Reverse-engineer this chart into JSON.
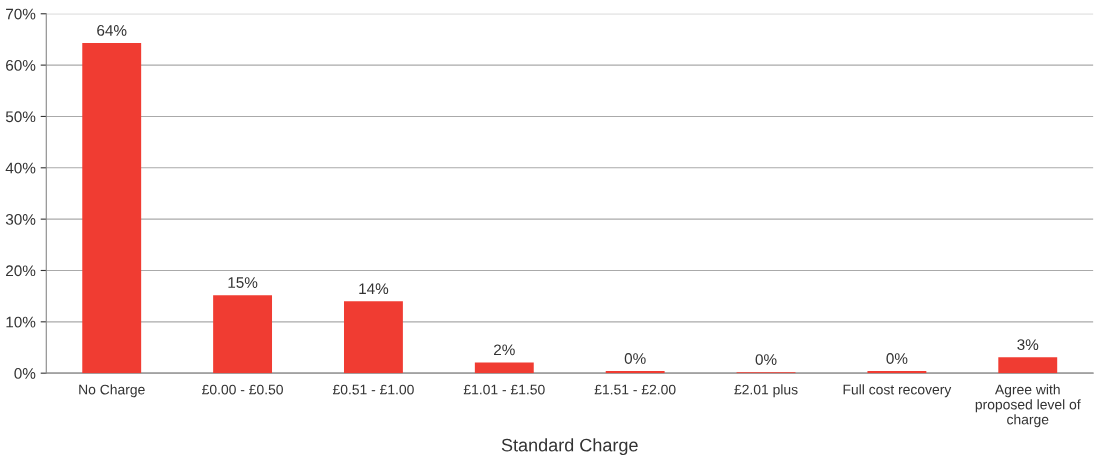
{
  "chart_data": {
    "type": "bar",
    "xlabel": "Standard Charge",
    "categories": [
      "No Charge",
      "£0.00 - £0.50",
      "£0.51 - £1.00",
      "£1.01 - £1.50",
      "£1.51 - £2.00",
      "£2.01 plus",
      "Full cost recovery",
      "Agree with\nproposed level of\ncharge"
    ],
    "values": [
      64.3,
      15.2,
      14.0,
      2.1,
      0.4,
      0.2,
      0.4,
      3.1
    ],
    "value_labels": [
      "64%",
      "15%",
      "14%",
      "2%",
      "0%",
      "0%",
      "0%",
      "3%"
    ],
    "color": "#f03c32",
    "ylim": [
      0,
      70
    ],
    "yticks": [
      {
        "value": 0,
        "label": "0%"
      },
      {
        "value": 10,
        "label": "10%"
      },
      {
        "value": 20,
        "label": "20%"
      },
      {
        "value": 30,
        "label": "30%"
      },
      {
        "value": 40,
        "label": "40%"
      },
      {
        "value": 50,
        "label": "50%"
      },
      {
        "value": 60,
        "label": "60%"
      },
      {
        "value": 70,
        "label": "70%"
      }
    ],
    "grid": "y",
    "legend": false
  }
}
